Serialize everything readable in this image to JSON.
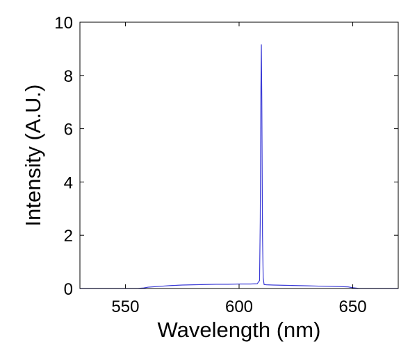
{
  "chart_data": {
    "type": "line",
    "xlabel": "Wavelength (nm)",
    "ylabel": "Intensity (A.U.)",
    "xlim": [
      530,
      670
    ],
    "ylim": [
      0,
      10
    ],
    "x_ticks": [
      550,
      600,
      650
    ],
    "x_tick_labels": [
      "550",
      "600",
      "650"
    ],
    "y_ticks": [
      0,
      2,
      4,
      6,
      8,
      10
    ],
    "y_tick_labels": [
      "0",
      "2",
      "4",
      "6",
      "8",
      "10"
    ],
    "grid": false,
    "line_color": "#3a3ad6",
    "series": [
      {
        "x": [
          530,
          555,
          558,
          560,
          565,
          570,
          575,
          580,
          585,
          590,
          595,
          600,
          605,
          608,
          609.0,
          609.3,
          609.6,
          609.8,
          610.0,
          610.3,
          610.6,
          611.0,
          612,
          615,
          620,
          625,
          630,
          635,
          640,
          645,
          648,
          650,
          653,
          670
        ],
        "y": [
          0,
          0,
          0.02,
          0.05,
          0.08,
          0.11,
          0.13,
          0.14,
          0.15,
          0.16,
          0.16,
          0.17,
          0.17,
          0.18,
          0.3,
          2.5,
          7.5,
          9.15,
          7.0,
          2.0,
          0.4,
          0.15,
          0.14,
          0.13,
          0.12,
          0.11,
          0.1,
          0.09,
          0.08,
          0.07,
          0.06,
          0.03,
          0,
          0
        ]
      }
    ]
  }
}
